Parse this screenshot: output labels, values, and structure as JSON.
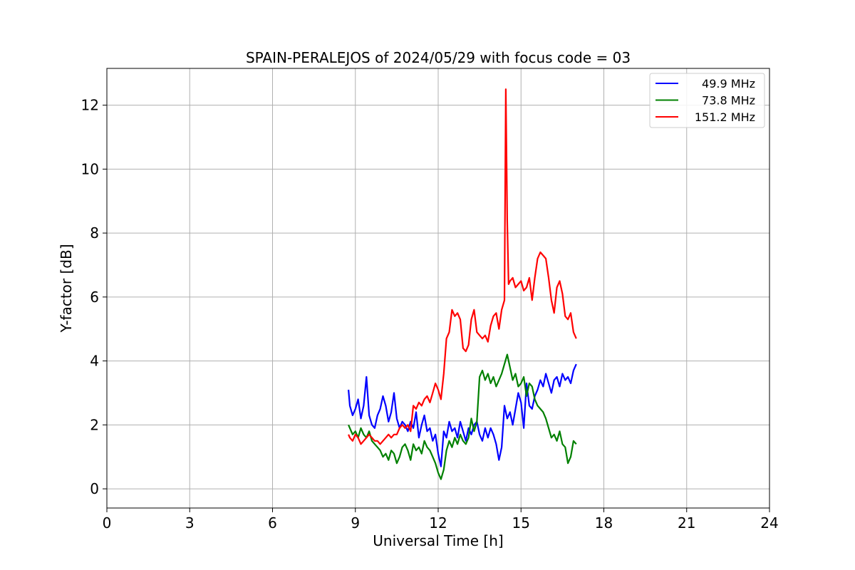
{
  "chart_data": {
    "type": "line",
    "title": "SPAIN-PERALEJOS of 2024/05/29 with focus code = 03",
    "xlabel": "Universal Time [h]",
    "ylabel": "Y-factor [dB]",
    "xlim": [
      0,
      24
    ],
    "ylim": [
      -0.6,
      13.15
    ],
    "xticks": [
      0,
      3,
      6,
      9,
      12,
      15,
      18,
      21,
      24
    ],
    "yticks": [
      0,
      2,
      4,
      6,
      8,
      10,
      12
    ],
    "grid": true,
    "legend_position": "top-right",
    "series": [
      {
        "name": "49.9 MHz",
        "color": "#0000ff",
        "x": [
          8.75,
          8.8,
          8.9,
          9.0,
          9.1,
          9.2,
          9.3,
          9.4,
          9.5,
          9.6,
          9.7,
          9.8,
          9.9,
          10.0,
          10.1,
          10.2,
          10.3,
          10.4,
          10.5,
          10.6,
          10.7,
          10.8,
          10.9,
          11.0,
          11.1,
          11.2,
          11.3,
          11.4,
          11.5,
          11.6,
          11.7,
          11.8,
          11.9,
          12.0,
          12.1,
          12.2,
          12.3,
          12.4,
          12.5,
          12.6,
          12.7,
          12.8,
          12.9,
          13.0,
          13.1,
          13.2,
          13.3,
          13.4,
          13.5,
          13.6,
          13.7,
          13.8,
          13.9,
          14.0,
          14.1,
          14.2,
          14.3,
          14.4,
          14.5,
          14.6,
          14.7,
          14.8,
          14.9,
          15.0,
          15.1,
          15.2,
          15.3,
          15.4,
          15.5,
          15.6,
          15.7,
          15.8,
          15.9,
          16.0,
          16.1,
          16.2,
          16.3,
          16.4,
          16.5,
          16.6,
          16.7,
          16.8,
          16.9,
          17.0
        ],
        "y": [
          3.1,
          2.6,
          2.3,
          2.5,
          2.8,
          2.2,
          2.6,
          3.5,
          2.3,
          2.0,
          1.9,
          2.3,
          2.5,
          2.9,
          2.6,
          2.1,
          2.4,
          3.0,
          2.2,
          1.9,
          2.1,
          2.0,
          1.8,
          2.1,
          1.9,
          2.4,
          1.6,
          2.0,
          2.3,
          1.8,
          1.9,
          1.5,
          1.7,
          1.1,
          0.7,
          1.8,
          1.6,
          2.1,
          1.8,
          1.9,
          1.6,
          2.1,
          1.8,
          1.5,
          1.9,
          1.7,
          2.0,
          2.1,
          1.7,
          1.5,
          1.9,
          1.6,
          1.9,
          1.7,
          1.4,
          0.9,
          1.3,
          2.6,
          2.2,
          2.4,
          2.0,
          2.5,
          3.0,
          2.7,
          1.9,
          3.3,
          2.6,
          2.5,
          2.9,
          3.1,
          3.4,
          3.2,
          3.6,
          3.3,
          3.0,
          3.4,
          3.5,
          3.2,
          3.6,
          3.4,
          3.5,
          3.3,
          3.7,
          3.9
        ]
      },
      {
        "name": "73.8 MHz",
        "color": "#008000",
        "x": [
          8.75,
          8.8,
          8.9,
          9.0,
          9.1,
          9.2,
          9.3,
          9.4,
          9.5,
          9.6,
          9.7,
          9.8,
          9.9,
          10.0,
          10.1,
          10.2,
          10.3,
          10.4,
          10.5,
          10.6,
          10.7,
          10.8,
          10.9,
          11.0,
          11.1,
          11.2,
          11.3,
          11.4,
          11.5,
          11.6,
          11.7,
          11.8,
          11.9,
          12.0,
          12.1,
          12.2,
          12.3,
          12.4,
          12.5,
          12.6,
          12.7,
          12.8,
          12.9,
          13.0,
          13.1,
          13.2,
          13.3,
          13.4,
          13.5,
          13.6,
          13.7,
          13.8,
          13.9,
          14.0,
          14.1,
          14.2,
          14.3,
          14.4,
          14.5,
          14.6,
          14.7,
          14.8,
          14.9,
          15.0,
          15.1,
          15.2,
          15.3,
          15.4,
          15.5,
          15.6,
          15.7,
          15.8,
          15.9,
          16.0,
          16.1,
          16.2,
          16.3,
          16.4,
          16.5,
          16.6,
          16.7,
          16.8,
          16.9,
          17.0
        ],
        "y": [
          2.0,
          1.9,
          1.7,
          1.8,
          1.6,
          1.9,
          1.7,
          1.6,
          1.8,
          1.5,
          1.4,
          1.3,
          1.2,
          1.0,
          1.1,
          0.9,
          1.2,
          1.1,
          0.8,
          1.0,
          1.3,
          1.4,
          1.2,
          0.9,
          1.4,
          1.2,
          1.3,
          1.1,
          1.5,
          1.3,
          1.2,
          1.0,
          0.8,
          0.5,
          0.3,
          0.6,
          1.2,
          1.5,
          1.3,
          1.6,
          1.4,
          1.7,
          1.5,
          1.4,
          1.6,
          2.2,
          1.8,
          2.1,
          3.5,
          3.7,
          3.4,
          3.6,
          3.3,
          3.5,
          3.2,
          3.4,
          3.6,
          3.9,
          4.2,
          3.8,
          3.4,
          3.6,
          3.2,
          3.3,
          3.5,
          2.9,
          3.3,
          3.2,
          2.8,
          2.6,
          2.5,
          2.4,
          2.2,
          1.9,
          1.6,
          1.7,
          1.5,
          1.8,
          1.4,
          1.3,
          0.8,
          1.0,
          1.5,
          1.4
        ]
      },
      {
        "name": "151.2 MHz",
        "color": "#ff0000",
        "x": [
          8.75,
          8.8,
          8.9,
          9.0,
          9.1,
          9.2,
          9.3,
          9.4,
          9.5,
          9.6,
          9.7,
          9.8,
          9.9,
          10.0,
          10.1,
          10.2,
          10.3,
          10.4,
          10.5,
          10.6,
          10.7,
          10.8,
          10.9,
          11.0,
          11.1,
          11.2,
          11.3,
          11.4,
          11.5,
          11.6,
          11.7,
          11.8,
          11.9,
          12.0,
          12.1,
          12.2,
          12.3,
          12.4,
          12.5,
          12.6,
          12.7,
          12.8,
          12.9,
          13.0,
          13.1,
          13.2,
          13.3,
          13.4,
          13.5,
          13.6,
          13.7,
          13.8,
          13.9,
          14.0,
          14.1,
          14.2,
          14.3,
          14.4,
          14.45,
          14.5,
          14.55,
          14.6,
          14.7,
          14.8,
          14.9,
          15.0,
          15.1,
          15.2,
          15.3,
          15.4,
          15.5,
          15.6,
          15.7,
          15.8,
          15.9,
          16.0,
          16.1,
          16.2,
          16.3,
          16.4,
          16.5,
          16.6,
          16.7,
          16.8,
          16.9,
          17.0
        ],
        "y": [
          1.7,
          1.6,
          1.5,
          1.7,
          1.6,
          1.4,
          1.5,
          1.6,
          1.7,
          1.6,
          1.5,
          1.5,
          1.4,
          1.5,
          1.6,
          1.7,
          1.6,
          1.7,
          1.7,
          1.9,
          2.0,
          1.9,
          2.0,
          1.8,
          2.6,
          2.5,
          2.7,
          2.6,
          2.8,
          2.9,
          2.7,
          3.0,
          3.3,
          3.1,
          2.8,
          3.6,
          4.7,
          4.9,
          5.6,
          5.4,
          5.5,
          5.3,
          4.4,
          4.3,
          4.5,
          5.3,
          5.6,
          4.9,
          4.8,
          4.7,
          4.8,
          4.6,
          5.1,
          5.4,
          5.5,
          5.0,
          5.6,
          5.9,
          12.5,
          8.4,
          6.4,
          6.5,
          6.6,
          6.3,
          6.4,
          6.5,
          6.2,
          6.3,
          6.6,
          5.9,
          6.6,
          7.2,
          7.4,
          7.3,
          7.2,
          6.6,
          5.9,
          5.5,
          6.3,
          6.5,
          6.1,
          5.4,
          5.3,
          5.5,
          4.9,
          4.7
        ]
      }
    ]
  }
}
